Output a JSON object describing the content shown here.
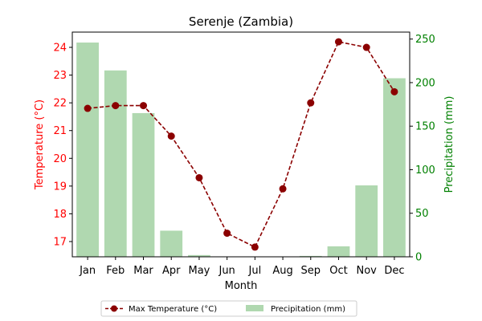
{
  "chart_data": {
    "type": "bar+line",
    "title": "Serenje (Zambia)",
    "xlabel": "Month",
    "categories": [
      "Jan",
      "Feb",
      "Mar",
      "Apr",
      "May",
      "Jun",
      "Jul",
      "Aug",
      "Sep",
      "Oct",
      "Nov",
      "Dec"
    ],
    "series": [
      {
        "name": "Max Temperature (°C)",
        "type": "line",
        "axis": "left",
        "color": "#8b0000",
        "values": [
          21.8,
          21.9,
          21.9,
          20.8,
          19.3,
          17.3,
          16.8,
          18.9,
          22.0,
          24.2,
          24.0,
          22.4
        ]
      },
      {
        "name": "Precipitation (mm)",
        "type": "bar",
        "axis": "right",
        "color": "#b0d8b0",
        "values": [
          246,
          214,
          165,
          30,
          2,
          0,
          0,
          0,
          1,
          12,
          82,
          205
        ]
      }
    ],
    "y_left": {
      "label": "Temperature (°C)",
      "color": "#ff0000",
      "lim": [
        16.45,
        24.55
      ],
      "ticks": [
        17,
        18,
        19,
        20,
        21,
        22,
        23,
        24
      ]
    },
    "y_right": {
      "label": "Precipitation (mm)",
      "color": "#008000",
      "lim": [
        0,
        258
      ],
      "ticks": [
        0,
        50,
        100,
        150,
        200,
        250
      ]
    },
    "legend_position": "bottom-center",
    "grid": false
  }
}
